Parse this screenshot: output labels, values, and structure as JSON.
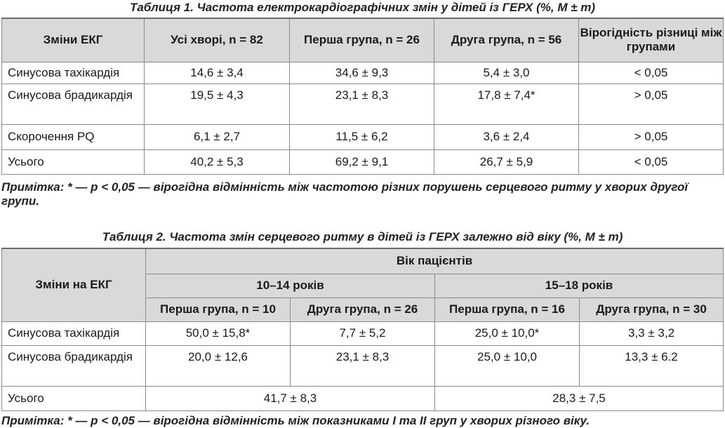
{
  "table1": {
    "title": "Таблиця 1. Частота електрокардіографічних змін у дітей із ГЕРХ (%, M ± m)",
    "headers": [
      "Зміни ЕКГ",
      "Усі хворі, n = 82",
      "Перша група, n = 26",
      "Друга група, n = 56",
      "Вірогідність різниці між групами"
    ],
    "rows": [
      {
        "label": "Синусова тахікардія",
        "all": "14,6 ± 3,4",
        "g1": "34,6 ± 9,3",
        "g2": "5,4 ± 3,0",
        "p": "< 0,05"
      },
      {
        "label": "Синусова брадикардія",
        "all": "19,5 ± 4,3",
        "g1": "23,1 ± 8,3",
        "g2": "17,8 ± 7,4*",
        "p": "> 0,05"
      },
      {
        "label": "Скорочення PQ",
        "all": "6,1 ± 2,7",
        "g1": "11,5 ± 6,2",
        "g2": "3,6 ± 2,4",
        "p": "> 0,05"
      },
      {
        "label": "Усього",
        "all": "40,2 ± 5,3",
        "g1": "69,2 ± 9,1",
        "g2": "26,7 ± 5,9",
        "p": "< 0,05"
      }
    ],
    "note": "Примітка: * — р < 0,05 — вірогідна відмінність між частотою різних порушень серцевого ритму у хворих другої групи."
  },
  "table2": {
    "title": "Таблиця 2. Частота змін серцевого ритму в дітей із ГЕРХ залежно від віку (%, M ± m)",
    "header_label": "Зміни на ЕКГ",
    "header_age": "Вік пацієнтів",
    "age_groups": [
      "10–14 років",
      "15–18 років"
    ],
    "sub_headers": [
      "Перша група, n = 10",
      "Друга група, n = 26",
      "Перша група, n = 16",
      "Друга група, n = 30"
    ],
    "rows": [
      {
        "label": "Синусова тахікардія",
        "values": [
          "50,0 ± 15,8*",
          "7,7 ± 5,2",
          "25,0 ± 10,0*",
          "3,3 ± 3,2"
        ]
      },
      {
        "label": "Синусова брадикардія",
        "values": [
          "20,0 ± 12,6",
          "23,1 ± 8,3",
          "25,0 ± 10,0",
          "13,3 ± 6.2"
        ]
      }
    ],
    "total": {
      "label": "Усього",
      "values": [
        "41,7 ± 8,3",
        "28,3 ± 7,5"
      ]
    },
    "note": "Примітка: * — р < 0,05 — вірогідна відмінність між показниками I та II груп у хворих різного віку."
  }
}
